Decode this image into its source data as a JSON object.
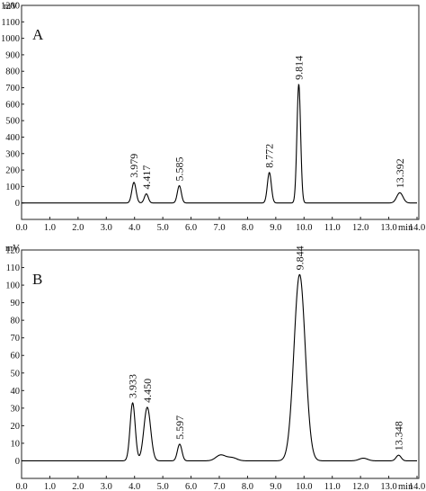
{
  "chart_data": [
    {
      "type": "line",
      "panel_label": "A",
      "y_unit": "mV",
      "x_unit": "min",
      "xlim": [
        0,
        14.0
      ],
      "ylim": [
        -100,
        1200
      ],
      "x_ticks": [
        0.0,
        1.0,
        2.0,
        3.0,
        4.0,
        5.0,
        6.0,
        7.0,
        8.0,
        9.0,
        10.0,
        11.0,
        12.0,
        13.0,
        14.0
      ],
      "x_tick_labels": [
        "0.0",
        "1.0",
        "2.0",
        "3.0",
        "4.0",
        "5.0",
        "6.0",
        "7.0",
        "8.0",
        "9.0",
        "10.0",
        "11.0",
        "12.0",
        "13.0",
        "14.0"
      ],
      "y_ticks": [
        0,
        100,
        200,
        300,
        400,
        500,
        600,
        700,
        800,
        900,
        1000,
        1100,
        1200
      ],
      "y_tick_labels": [
        "0",
        "100",
        "200",
        "300",
        "400",
        "500",
        "600",
        "700",
        "800",
        "900",
        "1000",
        "1100",
        "1200"
      ],
      "baseline": 0,
      "peaks": [
        {
          "rt": 3.979,
          "label": "3.979",
          "height": 125,
          "width": 0.075
        },
        {
          "rt": 4.417,
          "label": "4.417",
          "height": 55,
          "width": 0.07
        },
        {
          "rt": 5.585,
          "label": "5.585",
          "height": 105,
          "width": 0.07
        },
        {
          "rt": 8.772,
          "label": "8.772",
          "height": 185,
          "width": 0.07
        },
        {
          "rt": 9.814,
          "label": "9.814",
          "height": 720,
          "width": 0.065
        },
        {
          "rt": 13.392,
          "label": "13.392",
          "height": 62,
          "width": 0.11
        }
      ]
    },
    {
      "type": "line",
      "panel_label": "B",
      "y_unit": "mV",
      "x_unit": "min",
      "xlim": [
        0,
        14.0
      ],
      "ylim": [
        -10,
        120
      ],
      "x_ticks": [
        0.0,
        1.0,
        2.0,
        3.0,
        4.0,
        5.0,
        6.0,
        7.0,
        8.0,
        9.0,
        10.0,
        11.0,
        12.0,
        13.0,
        14.0
      ],
      "x_tick_labels": [
        "0.0",
        "1.0",
        "2.0",
        "3.0",
        "4.0",
        "5.0",
        "6.0",
        "7.0",
        "8.0",
        "9.0",
        "10.0",
        "11.0",
        "12.0",
        "13.0",
        "14.0"
      ],
      "y_ticks": [
        0,
        10,
        20,
        30,
        40,
        50,
        60,
        70,
        80,
        90,
        100,
        110,
        120
      ],
      "y_tick_labels": [
        "0",
        "10",
        "20",
        "30",
        "40",
        "50",
        "60",
        "70",
        "80",
        "90",
        "100",
        "110",
        "120"
      ],
      "baseline": 0,
      "peaks": [
        {
          "rt": 3.933,
          "label": "3.933",
          "height": 33,
          "width": 0.09
        },
        {
          "rt": 4.45,
          "label": "4.450",
          "height": 30.5,
          "width": 0.12
        },
        {
          "rt": 5.597,
          "label": "5.597",
          "height": 9.5,
          "width": 0.08
        },
        {
          "rt": 7.05,
          "label": "",
          "height": 3.3,
          "width": 0.17
        },
        {
          "rt": 7.45,
          "label": "",
          "height": 1.8,
          "width": 0.17
        },
        {
          "rt": 9.844,
          "label": "9.844",
          "height": 106,
          "width": 0.2
        },
        {
          "rt": 12.1,
          "label": "",
          "height": 1.5,
          "width": 0.15
        },
        {
          "rt": 13.348,
          "label": "13.348",
          "height": 3.2,
          "width": 0.09
        }
      ]
    }
  ]
}
